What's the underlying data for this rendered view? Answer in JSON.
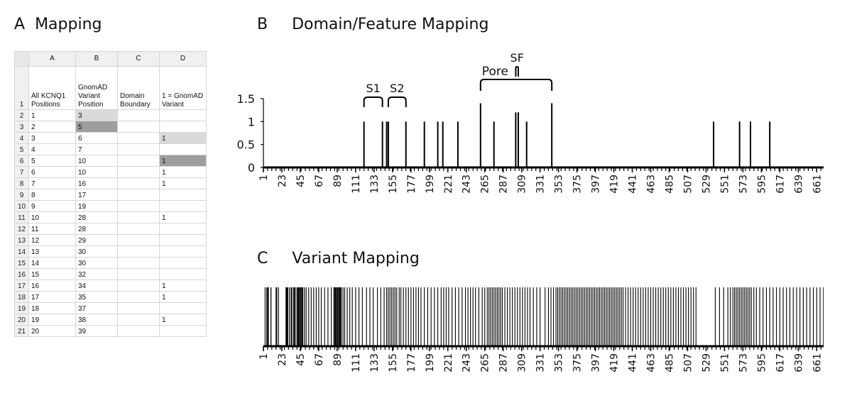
{
  "panel_a": {
    "letter": "A",
    "title": "Mapping",
    "columns": [
      "A",
      "B",
      "C",
      "D"
    ],
    "header_row_number": "1",
    "header_cells": [
      "All KCNQ1\nPositions",
      "GnomAD\nVariant\nPosition",
      "Domain\nBoundary",
      "1 = GnomAD\nVariant"
    ],
    "rows": [
      {
        "num": "2",
        "a": "1",
        "b": "3",
        "c": "",
        "d": "",
        "b_shade": "light",
        "d_shade": ""
      },
      {
        "num": "3",
        "a": "2",
        "b": "5",
        "c": "",
        "d": "",
        "b_shade": "dark",
        "d_shade": ""
      },
      {
        "num": "4",
        "a": "3",
        "b": "6",
        "c": "",
        "d": "1",
        "b_shade": "",
        "d_shade": "light"
      },
      {
        "num": "5",
        "a": "4",
        "b": "7",
        "c": "",
        "d": "",
        "b_shade": "",
        "d_shade": ""
      },
      {
        "num": "6",
        "a": "5",
        "b": "10",
        "c": "",
        "d": "1",
        "b_shade": "",
        "d_shade": "dark"
      },
      {
        "num": "7",
        "a": "6",
        "b": "10",
        "c": "",
        "d": "1",
        "b_shade": "",
        "d_shade": ""
      },
      {
        "num": "8",
        "a": "7",
        "b": "16",
        "c": "",
        "d": "1",
        "b_shade": "",
        "d_shade": ""
      },
      {
        "num": "9",
        "a": "8",
        "b": "17",
        "c": "",
        "d": "",
        "b_shade": "",
        "d_shade": ""
      },
      {
        "num": "10",
        "a": "9",
        "b": "19",
        "c": "",
        "d": "",
        "b_shade": "",
        "d_shade": ""
      },
      {
        "num": "11",
        "a": "10",
        "b": "28",
        "c": "",
        "d": "1",
        "b_shade": "",
        "d_shade": ""
      },
      {
        "num": "12",
        "a": "11",
        "b": "28",
        "c": "",
        "d": "",
        "b_shade": "",
        "d_shade": ""
      },
      {
        "num": "13",
        "a": "12",
        "b": "29",
        "c": "",
        "d": "",
        "b_shade": "",
        "d_shade": ""
      },
      {
        "num": "14",
        "a": "13",
        "b": "30",
        "c": "",
        "d": "",
        "b_shade": "",
        "d_shade": ""
      },
      {
        "num": "15",
        "a": "14",
        "b": "30",
        "c": "",
        "d": "",
        "b_shade": "",
        "d_shade": ""
      },
      {
        "num": "16",
        "a": "15",
        "b": "32",
        "c": "",
        "d": "",
        "b_shade": "",
        "d_shade": ""
      },
      {
        "num": "17",
        "a": "16",
        "b": "34",
        "c": "",
        "d": "1",
        "b_shade": "",
        "d_shade": ""
      },
      {
        "num": "18",
        "a": "17",
        "b": "35",
        "c": "",
        "d": "1",
        "b_shade": "",
        "d_shade": ""
      },
      {
        "num": "19",
        "a": "18",
        "b": "37",
        "c": "",
        "d": "",
        "b_shade": "",
        "d_shade": ""
      },
      {
        "num": "20",
        "a": "19",
        "b": "38",
        "c": "",
        "d": "1",
        "b_shade": "",
        "d_shade": ""
      },
      {
        "num": "21",
        "a": "20",
        "b": "39",
        "c": "",
        "d": "",
        "b_shade": "",
        "d_shade": ""
      }
    ]
  },
  "panel_b": {
    "letter": "B",
    "title": "Domain/Feature Mapping"
  },
  "panel_c": {
    "letter": "C",
    "title": "Variant Mapping"
  },
  "chart_data": [
    {
      "type": "bar",
      "panel": "B",
      "x_tick_labels": [
        "1",
        "23",
        "45",
        "67",
        "89",
        "111",
        "133",
        "155",
        "177",
        "199",
        "221",
        "243",
        "265",
        "287",
        "309",
        "331",
        "353",
        "375",
        "397",
        "419",
        "441",
        "463",
        "485",
        "507",
        "529",
        "551",
        "573",
        "595",
        "617",
        "639",
        "661"
      ],
      "x_range": [
        1,
        676
      ],
      "y_ticks": [
        "0",
        "0.5",
        "1",
        "1.5"
      ],
      "ylim": [
        0,
        1.5
      ],
      "bars": [
        {
          "x": 121,
          "y": 1
        },
        {
          "x": 143,
          "y": 1
        },
        {
          "x": 148,
          "y": 1
        },
        {
          "x": 150,
          "y": 1
        },
        {
          "x": 171,
          "y": 1
        },
        {
          "x": 193,
          "y": 1
        },
        {
          "x": 209,
          "y": 1
        },
        {
          "x": 215,
          "y": 1
        },
        {
          "x": 233,
          "y": 1
        },
        {
          "x": 260,
          "y": 1.4
        },
        {
          "x": 276,
          "y": 1
        },
        {
          "x": 302,
          "y": 1.2
        },
        {
          "x": 305,
          "y": 1.2
        },
        {
          "x": 315,
          "y": 1
        },
        {
          "x": 345,
          "y": 1.4
        },
        {
          "x": 538,
          "y": 1
        },
        {
          "x": 569,
          "y": 1
        },
        {
          "x": 582,
          "y": 1
        },
        {
          "x": 605,
          "y": 1
        }
      ],
      "brackets": [
        {
          "label": "S1",
          "start": 121,
          "end": 143
        },
        {
          "label": "S2",
          "start": 150,
          "end": 171
        },
        {
          "label": "Pore",
          "start": 260,
          "end": 345
        },
        {
          "label": "SF",
          "start": 302,
          "end": 305
        }
      ]
    },
    {
      "type": "barcode",
      "panel": "C",
      "x_tick_labels": [
        "1",
        "23",
        "45",
        "67",
        "89",
        "111",
        "133",
        "155",
        "177",
        "199",
        "221",
        "243",
        "265",
        "287",
        "309",
        "331",
        "353",
        "375",
        "397",
        "419",
        "441",
        "463",
        "485",
        "507",
        "529",
        "551",
        "573",
        "595",
        "617",
        "639",
        "661"
      ],
      "x_range": [
        1,
        676
      ],
      "variant_positions": [
        3,
        5,
        6,
        7,
        10,
        10,
        16,
        17,
        19,
        28,
        28,
        29,
        30,
        30,
        32,
        34,
        35,
        37,
        38,
        39,
        41,
        42,
        43,
        44,
        45,
        46,
        47,
        48,
        50,
        52,
        55,
        58,
        61,
        64,
        67,
        70,
        74,
        78,
        82,
        85,
        86,
        87,
        88,
        89,
        90,
        91,
        92,
        93,
        94,
        96,
        98,
        101,
        104,
        107,
        111,
        115,
        119,
        124,
        128,
        132,
        137,
        141,
        145,
        148,
        150,
        152,
        154,
        156,
        158,
        160,
        163,
        165,
        168,
        171,
        174,
        177,
        180,
        183,
        186,
        189,
        193,
        197,
        201,
        205,
        209,
        213,
        216,
        219,
        222,
        226,
        230,
        234,
        238,
        242,
        245,
        248,
        251,
        254,
        258,
        262,
        265,
        268,
        270,
        272,
        274,
        276,
        278,
        280,
        282,
        284,
        286,
        289,
        292,
        295,
        298,
        301,
        304,
        307,
        310,
        313,
        316,
        319,
        323,
        327,
        331,
        337,
        341,
        344,
        347,
        350,
        352,
        354,
        356,
        358,
        360,
        362,
        364,
        366,
        368,
        370,
        372,
        374,
        376,
        378,
        380,
        382,
        384,
        386,
        388,
        390,
        392,
        394,
        396,
        398,
        400,
        402,
        404,
        406,
        408,
        410,
        412,
        414,
        416,
        418,
        420,
        422,
        424,
        426,
        428,
        430,
        433,
        436,
        439,
        442,
        445,
        448,
        451,
        454,
        457,
        460,
        463,
        466,
        469,
        472,
        475,
        478,
        481,
        484,
        487,
        490,
        493,
        496,
        499,
        502,
        505,
        508,
        511,
        514,
        517,
        540,
        545,
        550,
        555,
        558,
        561,
        563,
        565,
        567,
        569,
        571,
        573,
        575,
        577,
        579,
        581,
        583,
        586,
        589,
        593,
        597,
        601,
        605,
        609,
        613,
        617,
        621,
        625,
        629,
        633,
        637,
        641,
        645,
        649,
        653,
        657,
        661,
        665,
        669,
        673
      ]
    }
  ]
}
